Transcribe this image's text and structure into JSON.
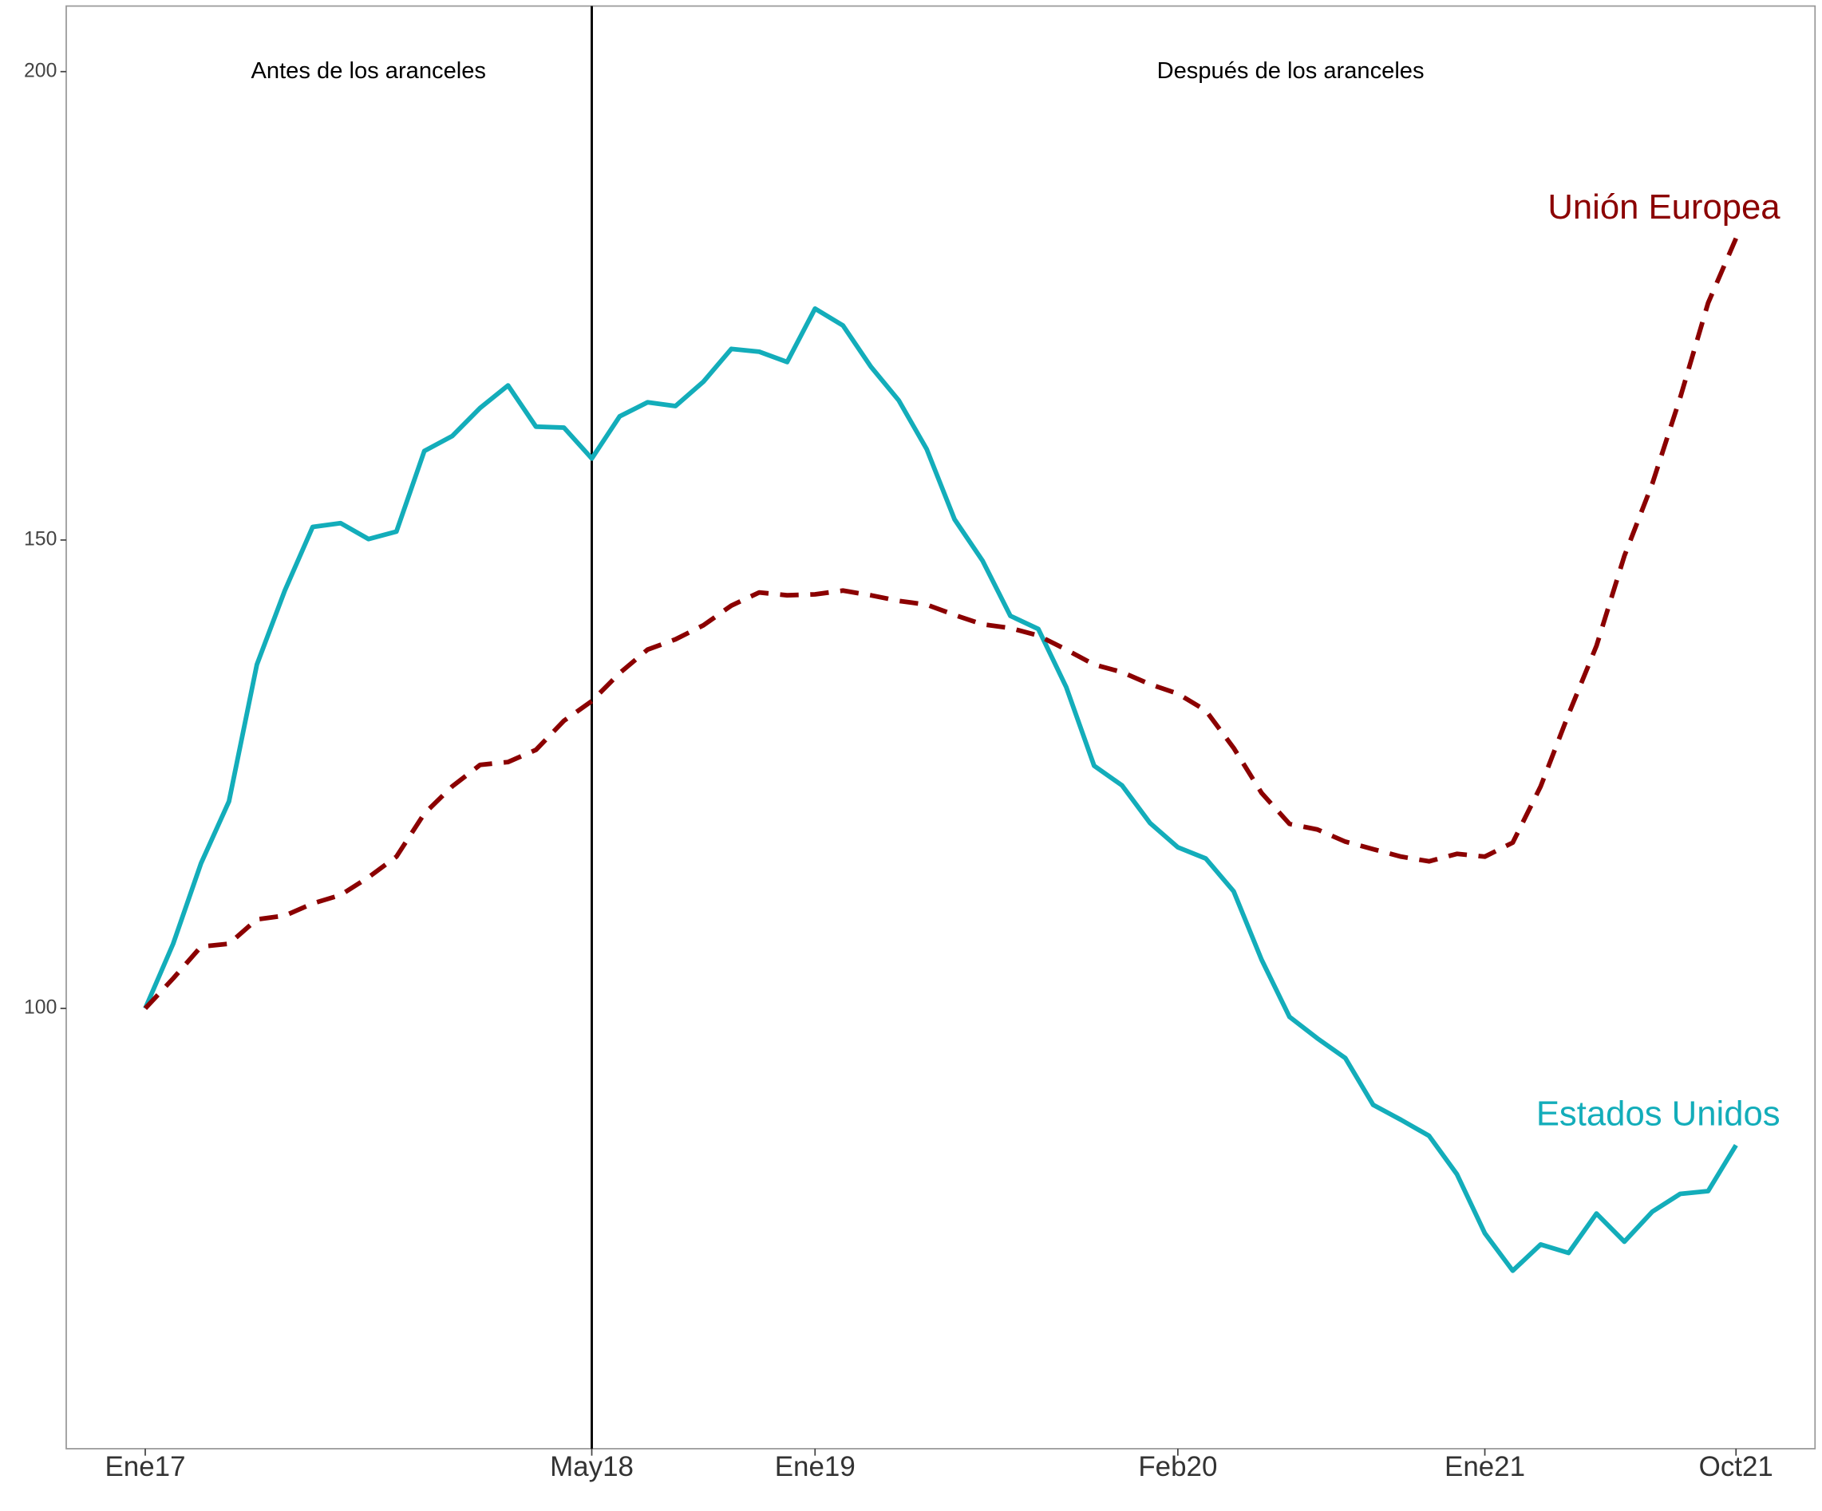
{
  "chart_data": {
    "type": "line",
    "categories": [
      "Ene17",
      null,
      null,
      null,
      null,
      null,
      null,
      null,
      null,
      null,
      null,
      null,
      null,
      null,
      null,
      null,
      "May18",
      null,
      null,
      null,
      null,
      null,
      null,
      null,
      "Ene19",
      null,
      null,
      null,
      null,
      null,
      null,
      null,
      null,
      null,
      null,
      null,
      null,
      "Feb20",
      null,
      null,
      null,
      null,
      null,
      null,
      null,
      null,
      null,
      null,
      "Ene21",
      null,
      null,
      null,
      null,
      null,
      null,
      null,
      null,
      "Oct21"
    ],
    "series": [
      {
        "name": "Estados Unidos",
        "color": "#13adba",
        "dashed": false,
        "values": [
          100,
          106.9,
          115.5,
          122.1,
          136.7,
          144.6,
          151.4,
          151.8,
          150.1,
          150.9,
          159.5,
          161.1,
          164.1,
          166.5,
          162.1,
          162,
          158.7,
          163.2,
          164.7,
          164.3,
          166.9,
          170.4,
          170.1,
          169,
          174.7,
          172.9,
          168.5,
          164.9,
          159.7,
          152.2,
          147.8,
          141.9,
          140.5,
          134.3,
          125.9,
          123.8,
          119.8,
          117.2,
          116,
          112.5,
          105.2,
          99.1,
          96.8,
          94.7,
          89.7,
          88.1,
          86.4,
          82.3,
          76,
          72,
          74.8,
          73.9,
          78.1,
          75.1,
          78.3,
          80.2,
          80.5,
          85.4
        ]
      },
      {
        "name": "Unión Europea",
        "color": "#8b0000",
        "dashed": true,
        "values": [
          100,
          103.2,
          106.6,
          106.9,
          109.5,
          109.9,
          111.2,
          112.1,
          114,
          116.2,
          120.8,
          123.7,
          126,
          126.3,
          127.6,
          130.7,
          132.8,
          135.8,
          138.3,
          139.4,
          140.9,
          143,
          144.4,
          144.1,
          144.2,
          144.6,
          144.1,
          143.5,
          143.1,
          142,
          141,
          140.6,
          139.8,
          138.3,
          136.7,
          135.9,
          134.6,
          133.6,
          131.8,
          127.8,
          123,
          119.7,
          119.1,
          117.8,
          117,
          116.2,
          115.7,
          116.5,
          116.2,
          117.7,
          123.7,
          131.4,
          138.7,
          148.3,
          156,
          165.2,
          175.3,
          182.2
        ]
      }
    ],
    "annotations": [
      "Antes de los aranceles",
      "Después de los aranceles"
    ],
    "vline": 16,
    "ylim": [
      53,
      207
    ],
    "yticks": [
      100,
      150,
      200
    ],
    "grid": false
  }
}
